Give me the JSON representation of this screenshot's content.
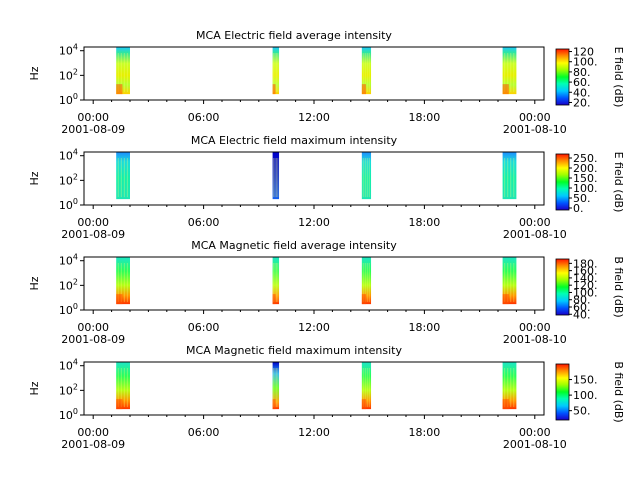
{
  "chart_data": [
    {
      "type": "heatmap",
      "title": "MCA  Electric field average intensity",
      "ylabel": "Hz",
      "y_scale": "log",
      "ylim": [
        1,
        20000
      ],
      "y_ticks": [
        {
          "base": "10",
          "exp": "0"
        },
        {
          "base": "10",
          "exp": "2"
        },
        {
          "base": "10",
          "exp": "4"
        }
      ],
      "x_ticks": [
        "00:00",
        "06:00",
        "12:00",
        "18:00",
        "00:00"
      ],
      "x_dates": [
        "2001-08-09",
        "2001-08-10"
      ],
      "xlim_hours": [
        -0.5,
        24.5
      ],
      "passes": [
        {
          "start_h": 1.25,
          "end_h": 2.0,
          "style": "yg",
          "hot": true
        },
        {
          "start_h": 9.75,
          "end_h": 10.1,
          "style": "yg",
          "hot": true
        },
        {
          "start_h": 14.6,
          "end_h": 15.1,
          "style": "yg",
          "hot": true
        },
        {
          "start_h": 22.25,
          "end_h": 23.0,
          "style": "yg",
          "hot": true
        }
      ],
      "colorbar": {
        "label": "E field (dB)",
        "range": [
          15,
          125
        ],
        "ticks": [
          {
            "v": 20,
            "t": "20."
          },
          {
            "v": 40,
            "t": "40."
          },
          {
            "v": 60,
            "t": "60."
          },
          {
            "v": 80,
            "t": "80."
          },
          {
            "v": 100,
            "t": "100."
          },
          {
            "v": 120,
            "t": "120"
          }
        ]
      }
    },
    {
      "type": "heatmap",
      "title": "MCA  Electric field maximum intensity",
      "ylabel": "Hz",
      "y_scale": "log",
      "ylim": [
        1,
        20000
      ],
      "y_ticks": [
        {
          "base": "10",
          "exp": "0"
        },
        {
          "base": "10",
          "exp": "2"
        },
        {
          "base": "10",
          "exp": "4"
        }
      ],
      "x_ticks": [
        "00:00",
        "06:00",
        "12:00",
        "18:00",
        "00:00"
      ],
      "x_dates": [
        "2001-08-09",
        "2001-08-10"
      ],
      "xlim_hours": [
        -0.5,
        24.5
      ],
      "passes": [
        {
          "start_h": 1.25,
          "end_h": 2.0,
          "style": "cy",
          "hot": false
        },
        {
          "start_h": 9.75,
          "end_h": 10.1,
          "style": "cyblue",
          "hot": false
        },
        {
          "start_h": 14.6,
          "end_h": 15.1,
          "style": "cy",
          "hot": false
        },
        {
          "start_h": 22.25,
          "end_h": 23.0,
          "style": "cy",
          "hot": false
        }
      ],
      "colorbar": {
        "label": "E field (dB)",
        "range": [
          -10,
          270
        ],
        "ticks": [
          {
            "v": 0,
            "t": "0."
          },
          {
            "v": 50,
            "t": "50."
          },
          {
            "v": 100,
            "t": "100."
          },
          {
            "v": 150,
            "t": "150."
          },
          {
            "v": 200,
            "t": "200."
          },
          {
            "v": 250,
            "t": "250."
          }
        ]
      }
    },
    {
      "type": "heatmap",
      "title": "MCA  Magnetic field average intensity",
      "ylabel": "Hz",
      "y_scale": "log",
      "ylim": [
        1,
        20000
      ],
      "y_ticks": [
        {
          "base": "10",
          "exp": "0"
        },
        {
          "base": "10",
          "exp": "2"
        },
        {
          "base": "10",
          "exp": "4"
        }
      ],
      "x_ticks": [
        "00:00",
        "06:00",
        "12:00",
        "18:00",
        "00:00"
      ],
      "x_dates": [
        "2001-08-09",
        "2001-08-10"
      ],
      "xlim_hours": [
        -0.5,
        24.5
      ],
      "passes": [
        {
          "start_h": 1.25,
          "end_h": 2.0,
          "style": "gr",
          "hot": true
        },
        {
          "start_h": 9.75,
          "end_h": 10.1,
          "style": "gr",
          "hot": true
        },
        {
          "start_h": 14.6,
          "end_h": 15.1,
          "style": "gr",
          "hot": true
        },
        {
          "start_h": 22.25,
          "end_h": 23.0,
          "style": "gr",
          "hot": true
        }
      ],
      "colorbar": {
        "label": "B field (dB)",
        "range": [
          38,
          192
        ],
        "ticks": [
          {
            "v": 40,
            "t": "40."
          },
          {
            "v": 60,
            "t": "60."
          },
          {
            "v": 80,
            "t": "80."
          },
          {
            "v": 100,
            "t": "100."
          },
          {
            "v": 120,
            "t": "120."
          },
          {
            "v": 140,
            "t": "140."
          },
          {
            "v": 160,
            "t": "160."
          },
          {
            "v": 180,
            "t": "180."
          }
        ]
      }
    },
    {
      "type": "heatmap",
      "title": "MCA  Magnetic field maximum intensity",
      "ylabel": "Hz",
      "y_scale": "log",
      "ylim": [
        1,
        20000
      ],
      "y_ticks": [
        {
          "base": "10",
          "exp": "0"
        },
        {
          "base": "10",
          "exp": "2"
        },
        {
          "base": "10",
          "exp": "4"
        }
      ],
      "x_ticks": [
        "00:00",
        "06:00",
        "12:00",
        "18:00",
        "00:00"
      ],
      "x_dates": [
        "2001-08-09",
        "2001-08-10"
      ],
      "xlim_hours": [
        -0.5,
        24.5
      ],
      "passes": [
        {
          "start_h": 1.25,
          "end_h": 2.0,
          "style": "gr",
          "hot": true
        },
        {
          "start_h": 9.75,
          "end_h": 10.1,
          "style": "grblue",
          "hot": true
        },
        {
          "start_h": 14.6,
          "end_h": 15.1,
          "style": "gr",
          "hot": true
        },
        {
          "start_h": 22.25,
          "end_h": 23.0,
          "style": "gr",
          "hot": true
        }
      ],
      "colorbar": {
        "label": "B field (dB)",
        "range": [
          20,
          200
        ],
        "ticks": [
          {
            "v": 50,
            "t": "50."
          },
          {
            "v": 100,
            "t": "100."
          },
          {
            "v": 150,
            "t": "150."
          }
        ]
      }
    }
  ]
}
